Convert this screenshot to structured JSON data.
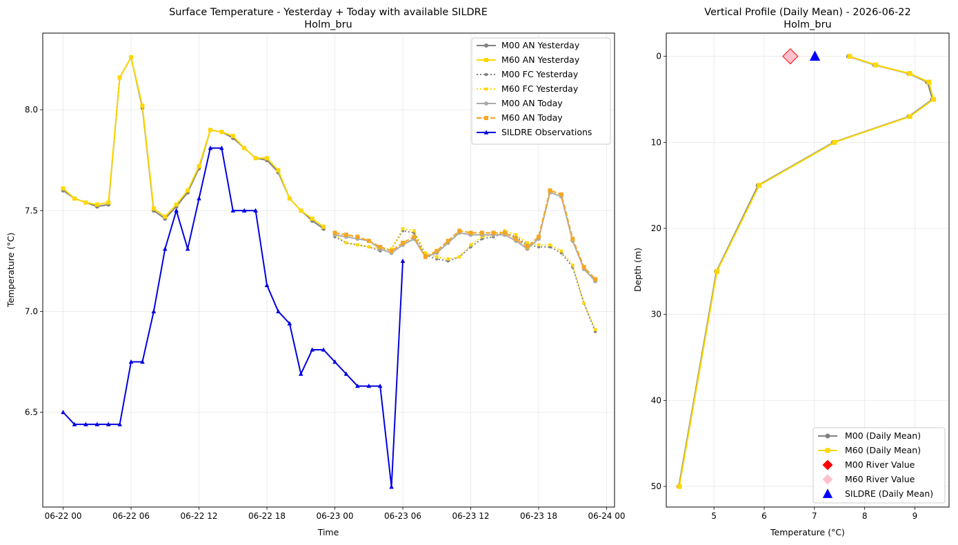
{
  "chart_data": [
    {
      "type": "line",
      "title": "Surface Temperature - Yesterday + Today with available SILDRE",
      "subtitle": "Holm_bru",
      "xlabel": "Time",
      "ylabel": "Temperature (°C)",
      "xlim_hours": [
        -1.8,
        48.7
      ],
      "ylim": [
        6.03,
        8.38
      ],
      "x_unit": "hours from 06-22 00",
      "xticks": [
        {
          "hour": 0,
          "label": "06-22 00"
        },
        {
          "hour": 6,
          "label": "06-22 06"
        },
        {
          "hour": 12,
          "label": "06-22 12"
        },
        {
          "hour": 18,
          "label": "06-22 18"
        },
        {
          "hour": 24,
          "label": "06-23 00"
        },
        {
          "hour": 30,
          "label": "06-23 06"
        },
        {
          "hour": 36,
          "label": "06-23 12"
        },
        {
          "hour": 42,
          "label": "06-23 18"
        },
        {
          "hour": 48,
          "label": "06-24 00"
        }
      ],
      "yticks": [
        {
          "value": 6.5,
          "label": "6.5"
        },
        {
          "value": 7.0,
          "label": "7.0"
        },
        {
          "value": 7.5,
          "label": "7.5"
        },
        {
          "value": 8.0,
          "label": "8.0"
        }
      ],
      "grid": true,
      "legend_position": "top-right",
      "series": [
        {
          "name": "M00 AN Yesterday",
          "color": "#808080",
          "dash": "solid",
          "marker": "circle",
          "width": 2,
          "x": [
            0,
            1,
            2,
            3,
            4,
            5,
            6,
            7,
            8,
            9,
            10,
            11,
            12,
            13,
            14,
            15,
            16,
            17,
            18,
            19,
            20,
            21,
            22,
            23
          ],
          "y": [
            7.6,
            7.56,
            7.54,
            7.52,
            7.53,
            8.16,
            8.26,
            8.01,
            7.5,
            7.46,
            7.52,
            7.59,
            7.71,
            7.9,
            7.89,
            7.86,
            7.81,
            7.76,
            7.75,
            7.69,
            7.56,
            7.5,
            7.45,
            7.41
          ]
        },
        {
          "name": "M60 AN Yesterday",
          "color": "#FFD700",
          "dash": "solid",
          "marker": "square",
          "width": 2,
          "x": [
            0,
            1,
            2,
            3,
            4,
            5,
            6,
            7,
            8,
            9,
            10,
            11,
            12,
            13,
            14,
            15,
            16,
            17,
            18,
            19,
            20,
            21,
            22,
            23
          ],
          "y": [
            7.61,
            7.56,
            7.54,
            7.53,
            7.54,
            8.16,
            8.26,
            8.02,
            7.51,
            7.47,
            7.53,
            7.6,
            7.72,
            7.9,
            7.89,
            7.87,
            7.81,
            7.76,
            7.76,
            7.7,
            7.56,
            7.5,
            7.46,
            7.42
          ]
        },
        {
          "name": "M00 FC Yesterday",
          "color": "#808080",
          "dash": "dotted",
          "marker": "circle",
          "width": 2,
          "x": [
            24,
            25,
            26,
            27,
            28,
            29,
            30,
            31,
            32,
            33,
            34,
            35,
            36,
            37,
            38,
            39,
            40,
            41,
            42,
            43,
            44,
            45,
            46,
            47
          ],
          "y": [
            7.37,
            7.34,
            7.33,
            7.32,
            7.3,
            7.31,
            7.4,
            7.39,
            7.28,
            7.26,
            7.25,
            7.27,
            7.32,
            7.36,
            7.37,
            7.39,
            7.37,
            7.33,
            7.32,
            7.32,
            7.29,
            7.22,
            7.04,
            6.9
          ]
        },
        {
          "name": "M60 FC Yesterday",
          "color": "#FFD700",
          "dash": "dotted",
          "marker": "square",
          "width": 2,
          "x": [
            24,
            25,
            26,
            27,
            28,
            29,
            30,
            31,
            32,
            33,
            34,
            35,
            36,
            37,
            38,
            39,
            40,
            41,
            42,
            43,
            44,
            45,
            46,
            47
          ],
          "y": [
            7.38,
            7.34,
            7.33,
            7.32,
            7.31,
            7.31,
            7.41,
            7.4,
            7.29,
            7.27,
            7.26,
            7.27,
            7.33,
            7.37,
            7.38,
            7.4,
            7.38,
            7.34,
            7.33,
            7.33,
            7.3,
            7.23,
            7.04,
            6.91
          ]
        },
        {
          "name": "M00 AN Today",
          "color": "#A9A9A9",
          "dash": "solid",
          "marker": "circle",
          "width": 2,
          "x": [
            24,
            25,
            26,
            27,
            28,
            29,
            30,
            31,
            32,
            33,
            34,
            35,
            36,
            37,
            38,
            39,
            40,
            41,
            42,
            43,
            44,
            45,
            46,
            47
          ],
          "y": [
            7.38,
            7.37,
            7.36,
            7.35,
            7.31,
            7.29,
            7.33,
            7.36,
            7.27,
            7.29,
            7.34,
            7.39,
            7.38,
            7.38,
            7.38,
            7.38,
            7.35,
            7.31,
            7.36,
            7.59,
            7.57,
            7.35,
            7.21,
            7.15
          ]
        },
        {
          "name": "M60 AN Today",
          "color": "#F5A623",
          "dash": "dashed",
          "marker": "square",
          "width": 2.2,
          "x": [
            24,
            25,
            26,
            27,
            28,
            29,
            30,
            31,
            32,
            33,
            34,
            35,
            36,
            37,
            38,
            39,
            40,
            41,
            42,
            43,
            44,
            45,
            46,
            47
          ],
          "y": [
            7.39,
            7.38,
            7.37,
            7.35,
            7.32,
            7.3,
            7.34,
            7.37,
            7.27,
            7.3,
            7.35,
            7.4,
            7.39,
            7.39,
            7.39,
            7.39,
            7.36,
            7.32,
            7.37,
            7.6,
            7.58,
            7.36,
            7.22,
            7.16
          ]
        },
        {
          "name": "SILDRE Observations",
          "color": "#0000E0",
          "dash": "solid",
          "marker": "triangle",
          "width": 2,
          "x": [
            0,
            1,
            2,
            3,
            4,
            5,
            6,
            7,
            8,
            9,
            10,
            11,
            12,
            13,
            14,
            15,
            16,
            17,
            18,
            19,
            20,
            21,
            22,
            23,
            24,
            25,
            26,
            27,
            28,
            29,
            30
          ],
          "y": [
            6.5,
            6.44,
            6.44,
            6.44,
            6.44,
            6.44,
            6.75,
            6.75,
            7.0,
            7.31,
            7.5,
            7.31,
            7.56,
            7.81,
            7.81,
            7.5,
            7.5,
            7.5,
            7.13,
            7.0,
            6.94,
            6.69,
            6.81,
            6.81,
            6.75,
            6.69,
            6.63,
            6.63,
            6.63,
            6.13,
            7.25
          ]
        }
      ]
    },
    {
      "type": "line",
      "title": "Vertical Profile (Daily Mean) - 2026-06-22",
      "subtitle": "Holm_bru",
      "xlabel": "Temperature (°C)",
      "ylabel": "Depth (m)",
      "xlim": [
        4.05,
        9.68
      ],
      "ylim": [
        52.4,
        -2.7
      ],
      "y_inverted": true,
      "xticks": [
        {
          "value": 5,
          "label": "5"
        },
        {
          "value": 6,
          "label": "6"
        },
        {
          "value": 7,
          "label": "7"
        },
        {
          "value": 8,
          "label": "8"
        },
        {
          "value": 9,
          "label": "9"
        }
      ],
      "yticks": [
        {
          "value": 0,
          "label": "0"
        },
        {
          "value": 10,
          "label": "10"
        },
        {
          "value": 20,
          "label": "20"
        },
        {
          "value": 30,
          "label": "30"
        },
        {
          "value": 40,
          "label": "40"
        },
        {
          "value": 50,
          "label": "50"
        }
      ],
      "grid": true,
      "legend_position": "bottom-right",
      "series": [
        {
          "name": "M00 (Daily Mean)",
          "color": "#808080",
          "marker": "circle",
          "width": 2,
          "temperature": [
            7.68,
            8.2,
            8.88,
            9.25,
            9.35,
            8.88,
            7.38,
            5.88,
            5.05,
            4.3
          ],
          "depth": [
            0,
            1,
            2,
            3,
            5,
            7,
            10,
            15,
            25,
            50
          ]
        },
        {
          "name": "M60 (Daily Mean)",
          "color": "#FFD700",
          "marker": "square",
          "width": 2,
          "temperature": [
            7.7,
            8.22,
            8.9,
            9.28,
            9.37,
            8.9,
            7.4,
            5.9,
            5.06,
            4.31
          ],
          "depth": [
            0,
            1,
            2,
            3,
            5,
            7,
            10,
            15,
            25,
            50
          ]
        }
      ],
      "points": [
        {
          "name": "M00 River Value",
          "color": "#FF0000",
          "marker": "diamond",
          "temperature": 6.52,
          "depth": 0
        },
        {
          "name": "M60 River Value",
          "color": "#FFC0CB",
          "marker": "diamond",
          "temperature": 6.52,
          "depth": 0
        },
        {
          "name": "SILDRE (Daily Mean)",
          "color": "#0000FF",
          "marker": "triangle",
          "temperature": 7.01,
          "depth": 0
        }
      ]
    }
  ]
}
